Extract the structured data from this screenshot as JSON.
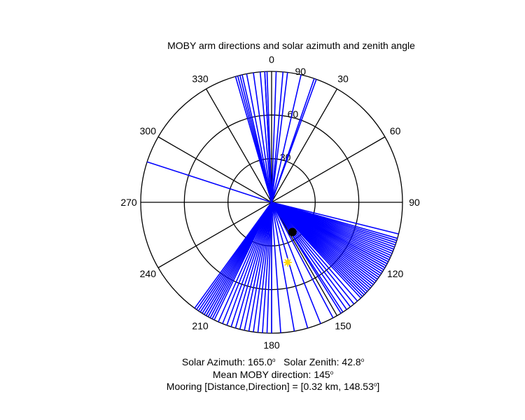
{
  "chart_data": {
    "type": "polar",
    "title": "MOBY arm directions and solar azimuth and zenith angle",
    "angle_ticks": [
      0,
      30,
      60,
      90,
      120,
      150,
      180,
      210,
      240,
      270,
      300,
      330
    ],
    "radial_ticks": [
      30,
      60,
      90
    ],
    "radial_max": 90,
    "angle_convention": "clockwise from north (0 at top)",
    "arm_color": "#0000FF",
    "arm_directions": [
      344,
      345,
      346,
      347,
      349,
      352,
      355,
      357,
      357,
      358,
      2,
      5,
      7,
      13,
      19,
      20,
      288,
      104,
      106,
      107,
      108,
      109,
      110,
      111,
      112,
      113,
      114,
      115,
      116,
      117,
      118,
      118,
      119,
      120,
      121,
      122,
      123,
      124,
      125,
      126,
      127,
      128,
      129,
      130,
      131,
      132,
      133,
      134,
      135,
      136,
      137,
      139,
      141,
      143,
      145,
      147,
      148,
      152,
      158,
      164,
      170,
      176,
      180,
      182,
      184,
      186,
      188,
      190,
      192,
      194,
      196,
      198,
      200,
      202,
      204,
      206,
      207,
      208,
      209,
      210,
      211,
      212,
      213,
      214,
      215,
      216
    ],
    "mean_direction": 145,
    "mean_marker_radius": 25,
    "mean_marker_color": "#000000",
    "sun": {
      "azimuth": 165.0,
      "zenith": 42.8,
      "color": "#FFD700"
    }
  },
  "caption": {
    "line1_a": "Solar Azimuth: 165.0",
    "line1_b": "   Solar Zenith: 42.8",
    "line2": "Mean MOBY direction: 145",
    "line3_a": "Mooring [Distance,Direction] = [0.32 km, 148.53",
    "line3_b": "]",
    "degree_symbol": "o"
  }
}
